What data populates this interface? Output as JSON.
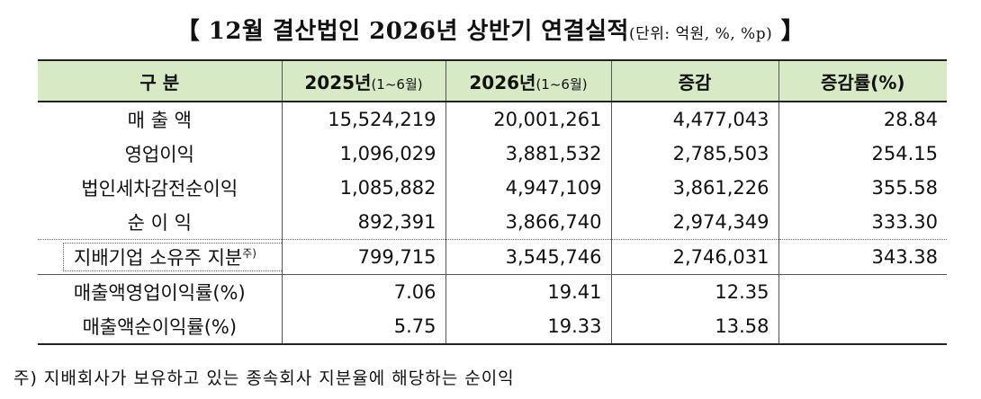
{
  "title": {
    "main": "【 12월 결산법인 2026년 상반기 연결실적",
    "unit": "(단위: 억원, %, %p)",
    "close": " 】"
  },
  "table": {
    "headers": [
      {
        "main": "구 분",
        "sub": ""
      },
      {
        "main": "2025년",
        "sub": "(1~6월)"
      },
      {
        "main": "2026년",
        "sub": "(1~6월)"
      },
      {
        "main": "증감",
        "sub": ""
      },
      {
        "main": "증감률(%)",
        "sub": ""
      }
    ],
    "rows": [
      {
        "label": "매 출 액",
        "c2025": "15,524,219",
        "c2026": "20,001,261",
        "change": "4,477,043",
        "rate": "28.84"
      },
      {
        "label": "영업이익",
        "c2025": "1,096,029",
        "c2026": "3,881,532",
        "change": "2,785,503",
        "rate": "254.15"
      },
      {
        "label": "법인세차감전순이익",
        "c2025": "1,085,882",
        "c2026": "4,947,109",
        "change": "3,861,226",
        "rate": "355.58"
      },
      {
        "label": "순 이 익",
        "c2025": "892,391",
        "c2026": "3,866,740",
        "change": "2,974,349",
        "rate": "333.30"
      },
      {
        "label": "지배기업 소유주 지분",
        "sup": "주)",
        "c2025": "799,715",
        "c2026": "3,545,746",
        "change": "2,746,031",
        "rate": "343.38"
      },
      {
        "label": "매출액영업이익률(%)",
        "c2025": "7.06",
        "c2026": "19.41",
        "change": "12.35",
        "rate": ""
      },
      {
        "label": "매출액순이익률(%)",
        "c2025": "5.75",
        "c2026": "19.33",
        "change": "13.58",
        "rate": ""
      }
    ]
  },
  "footnote": "주) 지배회사가 보유하고 있는 종속회사 지분율에 해당하는 순이익"
}
